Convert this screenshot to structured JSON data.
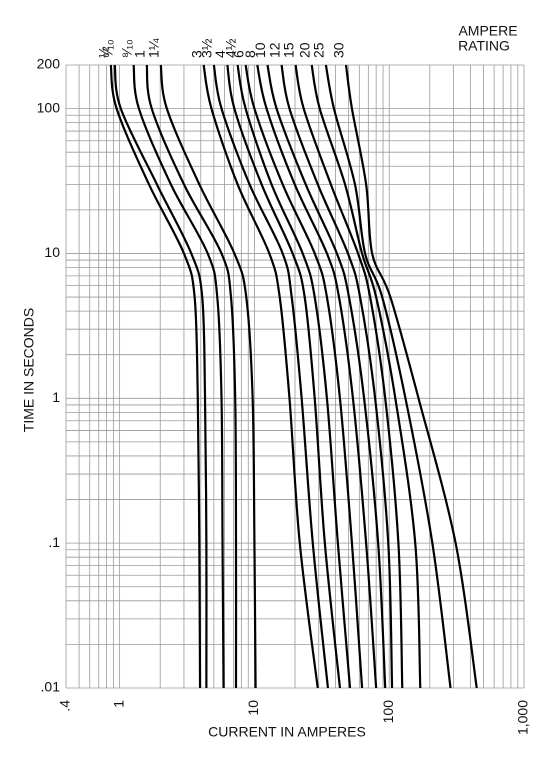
{
  "chart_data": {
    "type": "line",
    "x_label": "CURRENT IN AMPERES",
    "y_label": "TIME IN SECONDS",
    "legend_title": [
      "AMPERE",
      "RATING"
    ],
    "log_x": true,
    "log_y": true,
    "grid": true,
    "color": "#000000",
    "xlim": [
      0.4,
      1000
    ],
    "ylim": [
      0.01,
      200
    ],
    "xticks": [
      {
        "value": 0.4,
        "label": ".4"
      },
      1,
      10,
      100,
      {
        "value": 1000,
        "label": "1,000"
      }
    ],
    "yticks": [
      200,
      100,
      10,
      1,
      {
        "value": 0.1,
        "label": ".1"
      },
      {
        "value": 0.01,
        "label": ".01"
      }
    ],
    "xgrid": [
      0.5,
      0.6,
      0.7,
      0.8,
      0.9,
      2,
      3,
      4,
      5,
      6,
      7,
      8,
      9,
      20,
      30,
      40,
      50,
      60,
      70,
      80,
      90,
      200,
      300,
      400,
      500,
      600,
      700,
      800,
      900
    ],
    "ygrid": [
      0.02,
      0.03,
      0.04,
      0.05,
      0.06,
      0.07,
      0.08,
      0.09,
      0.2,
      0.3,
      0.4,
      0.5,
      0.6,
      0.7,
      0.8,
      0.9,
      2,
      3,
      4,
      5,
      6,
      7,
      8,
      9,
      20,
      30,
      40,
      50,
      60,
      70,
      80,
      90
    ],
    "y": [
      200,
      100,
      30,
      10,
      5,
      1,
      0.1,
      0.01
    ],
    "series": [
      {
        "name": "½",
        "x": [
          0.86,
          0.95,
          1.65,
          3.0,
          3.6,
          3.8,
          3.9,
          3.95
        ]
      },
      {
        "name": "⁶⁄₁₀",
        "x": [
          0.92,
          1.02,
          1.89,
          3.4,
          4.1,
          4.3,
          4.4,
          4.4
        ]
      },
      {
        "name": "⁸⁄₁₀",
        "x": [
          1.27,
          1.39,
          2.4,
          4.5,
          5.3,
          5.7,
          5.8,
          5.9
        ]
      },
      {
        "name": "1",
        "x": [
          1.59,
          1.73,
          3.0,
          5.7,
          6.7,
          7.2,
          7.3,
          7.3
        ]
      },
      {
        "name": "1¼",
        "x": [
          2.02,
          2.24,
          3.9,
          7.1,
          8.7,
          9.7,
          10,
          10.2
        ]
      },
      {
        "name": "3",
        "x": [
          4.2,
          4.8,
          7.5,
          12.9,
          15.4,
          18.2,
          21.7,
          29.5
        ]
      },
      {
        "name": "3½",
        "x": [
          5.0,
          5.7,
          9.2,
          16.2,
          18.9,
          22.4,
          27.1,
          35.1
        ]
      },
      {
        "name": "4",
        "x": [
          6.3,
          7.1,
          11.3,
          19.2,
          23.6,
          28.0,
          33.3,
          43.1
        ]
      },
      {
        "name": "4½",
        "x": [
          7.5,
          8.6,
          13.4,
          22.8,
          28.0,
          34.5,
          41.6,
          51.2
        ]
      },
      {
        "name": "6",
        "x": [
          8.6,
          10,
          16.2,
          28.0,
          34.5,
          43.1,
          52.9,
          62.9
        ]
      },
      {
        "name": "8",
        "x": [
          10.5,
          12.3,
          19.9,
          34.5,
          42.4,
          53.8,
          67.4,
          80.0
        ]
      },
      {
        "name": "10",
        "x": [
          12.5,
          14.6,
          24.0,
          40.9,
          50.3,
          65.1,
          82.8,
          93.4
        ]
      },
      {
        "name": "12",
        "x": [
          15.9,
          18.2,
          29.5,
          49.4,
          60.8,
          78.6,
          98.4,
          105
        ]
      },
      {
        "name": "15",
        "x": [
          20.2,
          23.2,
          36.9,
          58.7,
          72.2,
          93.4,
          117,
          125
        ]
      },
      {
        "name": "20",
        "x": [
          26.6,
          30.5,
          47.0,
          62.9,
          80.0,
          111,
          156,
          170
        ]
      },
      {
        "name": "25",
        "x": [
          33.9,
          38.9,
          55.7,
          66.2,
          88.7,
          132,
          209,
          285
        ]
      },
      {
        "name": "30",
        "x": [
          47.8,
          52.9,
          67.4,
          74.7,
          102,
          165,
          311,
          446
        ]
      }
    ]
  }
}
